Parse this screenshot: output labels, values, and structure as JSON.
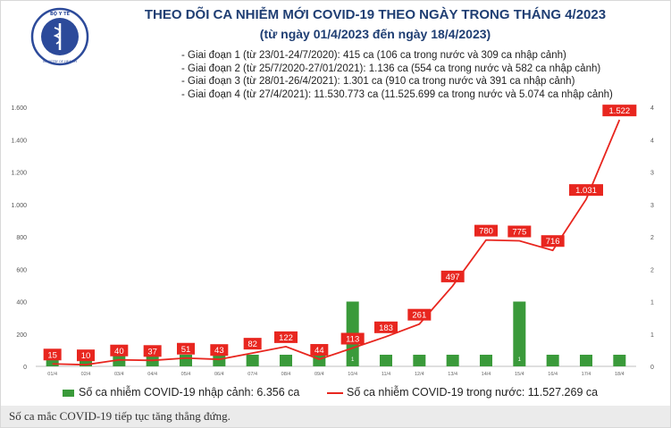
{
  "logo_text": "BỘ Y TẾ · MINISTRY OF HEALTH",
  "caption": "Số ca mắc COVID-19 tiếp tục tăng thẳng đứng.",
  "chart_data": {
    "type": "bar+line",
    "title": "THEO DÕI CA NHIỄM MỚI COVID-19 THEO NGÀY TRONG THÁNG 4/2023",
    "subtitle": "(từ ngày 01/4/2023 đến ngày 18/4/2023)",
    "phases": [
      "- Giai đoạn 1 (từ 23/01-24/7/2020): 415 ca (106 ca trong nước và 309 ca nhập cảnh)",
      "- Giai đoạn 2 (từ 25/7/2020-27/01/2021): 1.136 ca (554 ca trong nước và 582 ca nhập cảnh)",
      "- Giai đoạn 3 (từ 28/01-26/4/2021): 1.301 ca (910 ca trong nước và 391 ca nhập cảnh)",
      "- Giai đoạn 4 (từ 27/4/2021): 11.530.773 ca (11.525.699 ca trong nước và 5.074 ca nhập cảnh)"
    ],
    "categories": [
      "01/4",
      "02/4",
      "03/4",
      "04/4",
      "05/4",
      "06/4",
      "07/4",
      "08/4",
      "09/4",
      "10/4",
      "11/4",
      "12/4",
      "13/4",
      "14/4",
      "15/4",
      "16/4",
      "17/4",
      "18/4"
    ],
    "series": [
      {
        "name": "Số ca nhiễm COVID-19 nhập cảnh: 6.356 ca",
        "type": "bar",
        "axis": "right",
        "color": "#3a9a3a",
        "values": [
          0,
          0,
          0,
          0,
          0,
          0,
          0,
          0,
          0,
          1,
          0,
          0,
          0,
          0,
          1,
          0,
          0,
          0
        ],
        "labels": [
          "",
          "",
          "",
          "",
          "",
          "",
          "",
          "",
          "",
          "1",
          "",
          "",
          "",
          "",
          "1",
          "",
          "",
          ""
        ]
      },
      {
        "name": "Số ca nhiễm COVID-19 trong nước: 11.527.269 ca",
        "type": "line",
        "axis": "left",
        "color": "#e8261f",
        "values": [
          15,
          10,
          40,
          37,
          51,
          43,
          82,
          122,
          44,
          113,
          183,
          261,
          497,
          780,
          775,
          716,
          1031,
          1522
        ],
        "labels": [
          "15",
          "10",
          "40",
          "37",
          "51",
          "43",
          "82",
          "122",
          "44",
          "113",
          "183",
          "261",
          "497",
          "780",
          "775",
          "716",
          "1.031",
          "1.522"
        ]
      }
    ],
    "y_left": {
      "ylim": [
        0,
        1600
      ],
      "ticks": [
        0,
        200,
        400,
        600,
        800,
        1000,
        1200,
        1400,
        1600
      ],
      "tick_labels": [
        "0",
        "200",
        "400",
        "600",
        "800",
        "1.000",
        "1.200",
        "1.400",
        "1.600"
      ]
    },
    "y_right": {
      "ylim": [
        0,
        4
      ],
      "ticks": [
        0,
        0.5,
        1,
        1.5,
        2,
        2.5,
        3,
        3.5,
        4
      ],
      "tick_labels": [
        "0",
        "1",
        "1",
        "2",
        "2",
        "3",
        "3",
        "4",
        "4"
      ]
    },
    "grid": false,
    "legend_position": "bottom"
  }
}
